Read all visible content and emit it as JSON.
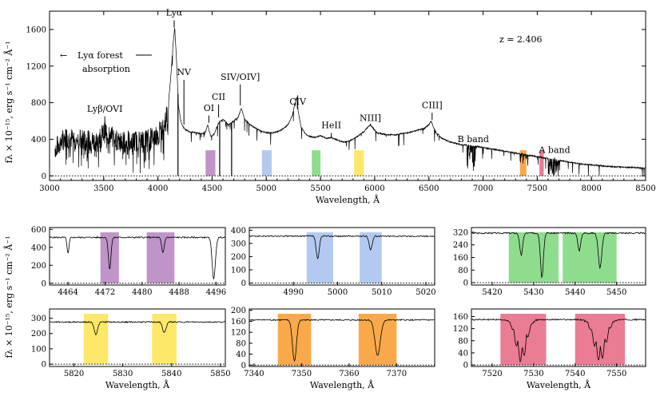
{
  "figure": {
    "ylabel": "fλ × 10⁻¹⁵, erg s⁻¹ cm⁻² Å⁻¹",
    "ylabel_bottom": "fλ × 10⁻¹⁵, erg s⁻¹ cm⁻² Å⁻¹",
    "redshift_label": "z = 2.406"
  },
  "chart_data": [
    {
      "id": "main",
      "type": "line",
      "title": "",
      "xlabel": "Wavelength, Å",
      "ylabel": "fλ × 10⁻¹⁵, erg s⁻¹ cm⁻² Å⁻¹",
      "xlim": [
        3000,
        8500
      ],
      "ylim": [
        -50,
        1800
      ],
      "xticks": [
        3000,
        3500,
        4000,
        4500,
        5000,
        5500,
        6000,
        6500,
        7000,
        7500,
        8000,
        8500
      ],
      "yticks": [
        0,
        400,
        800,
        1200,
        1600
      ],
      "series": [
        {
          "name": "spectrum",
          "x": [
            3050,
            3150,
            3250,
            3350,
            3420,
            3470,
            3520,
            3560,
            3620,
            3700,
            3800,
            3900,
            3980,
            4050,
            4090,
            4120,
            4140,
            4155,
            4170,
            4190,
            4215,
            4235,
            4260,
            4300,
            4350,
            4400,
            4440,
            4460,
            4475,
            4490,
            4520,
            4560,
            4600,
            4650,
            4700,
            4740,
            4770,
            4800,
            4850,
            4900,
            4950,
            5000,
            5050,
            5100,
            5150,
            5200,
            5240,
            5265,
            5280,
            5295,
            5320,
            5360,
            5400,
            5450,
            5500,
            5550,
            5600,
            5640,
            5680,
            5720,
            5760,
            5800,
            5850,
            5900,
            5940,
            5960,
            5980,
            6020,
            6100,
            6200,
            6300,
            6400,
            6460,
            6500,
            6520,
            6540,
            6570,
            6620,
            6700,
            6800,
            6900,
            7000,
            7100,
            7200,
            7300,
            7400,
            7500,
            7600,
            7700,
            7800,
            7900,
            8000,
            8100,
            8200,
            8300,
            8400,
            8500
          ],
          "y": [
            300,
            420,
            400,
            380,
            380,
            430,
            490,
            440,
            390,
            370,
            380,
            400,
            430,
            520,
            700,
            1100,
            1450,
            1620,
            1300,
            760,
            580,
            530,
            500,
            480,
            470,
            460,
            480,
            560,
            480,
            430,
            460,
            580,
            620,
            560,
            600,
            640,
            740,
            620,
            560,
            520,
            490,
            470,
            470,
            480,
            510,
            560,
            660,
            800,
            860,
            700,
            540,
            460,
            430,
            420,
            440,
            410,
            420,
            400,
            380,
            370,
            380,
            400,
            440,
            480,
            540,
            560,
            530,
            470,
            450,
            450,
            470,
            500,
            520,
            560,
            600,
            540,
            470,
            410,
            370,
            340,
            330,
            310,
            290,
            270,
            250,
            230,
            210,
            190,
            170,
            150,
            130,
            120,
            110,
            100,
            95,
            90,
            85
          ]
        }
      ],
      "shaded_bands": [
        {
          "x": [
            4440,
            4530
          ],
          "color": "#bf94c8"
        },
        {
          "x": [
            4960,
            5050
          ],
          "color": "#b4c9f0"
        },
        {
          "x": [
            5420,
            5500
          ],
          "color": "#8fdc8f"
        },
        {
          "x": [
            5810,
            5900
          ],
          "color": "#fde86a"
        },
        {
          "x": [
            7340,
            7400
          ],
          "color": "#f9a94a"
        },
        {
          "x": [
            7520,
            7560
          ],
          "color": "#ea7c94"
        }
      ],
      "annotations": [
        {
          "text": "Lyα",
          "x": 4150,
          "y_text": 1750,
          "y_line": [
            1700,
            1620
          ]
        },
        {
          "text": "Lyβ/OVI",
          "x": 3510,
          "y_text": 700,
          "y_line": [
            650,
            530
          ]
        },
        {
          "text": "NV",
          "x": 4240,
          "y_text": 1100,
          "y_line": [
            1050,
            560
          ]
        },
        {
          "text": "OI",
          "x": 4470,
          "y_text": 710,
          "y_line": [
            660,
            580
          ]
        },
        {
          "text": "CII",
          "x": 4560,
          "y_text": 830,
          "y_line": [
            780,
            640
          ]
        },
        {
          "text": "SIV/OIV]",
          "x": 4760,
          "y_text": 1050,
          "y_line": [
            1000,
            770
          ]
        },
        {
          "text": "CIV",
          "x": 5290,
          "y_text": 780,
          "y_line": [
            730,
            880
          ]
        },
        {
          "text": "HeII",
          "x": 5600,
          "y_text": 520,
          "y_line": [
            470,
            420
          ]
        },
        {
          "text": "NIII]",
          "x": 5960,
          "y_text": 600,
          "y_line": [
            550,
            570
          ]
        },
        {
          "text": "CIII]",
          "x": 6530,
          "y_text": 740,
          "y_line": [
            690,
            610
          ]
        },
        {
          "text": "B band",
          "x": 6910,
          "y_text": 370,
          "y_line": [
            330,
            300
          ]
        },
        {
          "text": "A band",
          "x": 7660,
          "y_text": 250,
          "y_line": [
            200,
            180
          ]
        }
      ],
      "forest_label": {
        "line1": "Lyα forest",
        "line2": "absorption",
        "arrow": "←"
      }
    },
    {
      "id": "p1",
      "type": "line",
      "xlabel": "",
      "xlim": [
        4460,
        4498
      ],
      "ylim": [
        -20,
        620
      ],
      "xticks": [
        4464,
        4472,
        4480,
        4488,
        4496
      ],
      "yticks": [
        0,
        200,
        400,
        600
      ],
      "continuum": 510,
      "bands": [
        {
          "x": [
            4471,
            4475
          ],
          "color": "#bf94c8"
        },
        {
          "x": [
            4481,
            4487
          ],
          "color": "#bf94c8"
        }
      ],
      "dips": [
        {
          "x": 4464,
          "depth": 180,
          "w": 0.3
        },
        {
          "x": 4473,
          "depth": 350,
          "w": 0.4
        },
        {
          "x": 4484.5,
          "depth": 170,
          "w": 0.4
        },
        {
          "x": 4495.5,
          "depth": 460,
          "w": 0.5
        }
      ]
    },
    {
      "id": "p2",
      "type": "line",
      "xlabel": "",
      "xlim": [
        4980,
        5022
      ],
      "ylim": [
        -15,
        420
      ],
      "xticks": [
        4990,
        5000,
        5010,
        5020
      ],
      "yticks": [
        0,
        100,
        200,
        300,
        400
      ],
      "continuum": 355,
      "bands": [
        {
          "x": [
            4993,
            4999
          ],
          "color": "#b4c9f0"
        },
        {
          "x": [
            5005,
            5010
          ],
          "color": "#b4c9f0"
        }
      ],
      "dips": [
        {
          "x": 4995.5,
          "depth": 170,
          "w": 0.5
        },
        {
          "x": 5007.5,
          "depth": 100,
          "w": 0.5
        }
      ]
    },
    {
      "id": "p3",
      "type": "line",
      "xlabel": "",
      "xlim": [
        5415,
        5457
      ],
      "ylim": [
        -15,
        350
      ],
      "xticks": [
        5420,
        5430,
        5440,
        5450
      ],
      "yticks": [
        0,
        80,
        160,
        240,
        320
      ],
      "continuum": 315,
      "bands": [
        {
          "x": [
            5424,
            5436
          ],
          "color": "#8fdc8f"
        },
        {
          "x": [
            5437,
            5450
          ],
          "color": "#8fdc8f"
        }
      ],
      "dips": [
        {
          "x": 5427,
          "depth": 140,
          "w": 0.5
        },
        {
          "x": 5432,
          "depth": 280,
          "w": 0.5
        },
        {
          "x": 5441,
          "depth": 110,
          "w": 0.5
        },
        {
          "x": 5446,
          "depth": 220,
          "w": 0.6
        }
      ]
    },
    {
      "id": "p4",
      "type": "line",
      "xlabel": "Wavelength, Å",
      "xlim": [
        5815,
        5851
      ],
      "ylim": [
        -15,
        360
      ],
      "xticks": [
        5820,
        5830,
        5840,
        5850
      ],
      "yticks": [
        0,
        100,
        200,
        300
      ],
      "continuum": 275,
      "bands": [
        {
          "x": [
            5822,
            5827
          ],
          "color": "#fde86a"
        },
        {
          "x": [
            5836,
            5841
          ],
          "color": "#fde86a"
        }
      ],
      "dips": [
        {
          "x": 5824.5,
          "depth": 80,
          "w": 0.5
        },
        {
          "x": 5838.5,
          "depth": 70,
          "w": 0.5
        }
      ]
    },
    {
      "id": "p5",
      "type": "line",
      "xlabel": "Wavelength, Å",
      "xlim": [
        7339,
        7378
      ],
      "ylim": [
        -5,
        205
      ],
      "xticks": [
        7340,
        7350,
        7360,
        7370
      ],
      "yticks": [
        0,
        40,
        80,
        120,
        160,
        200
      ],
      "continuum": 165,
      "bands": [
        {
          "x": [
            7345,
            7352
          ],
          "color": "#f9a94a"
        },
        {
          "x": [
            7362,
            7370
          ],
          "color": "#f9a94a"
        }
      ],
      "dips": [
        {
          "x": 7348.5,
          "depth": 150,
          "w": 0.6
        },
        {
          "x": 7366,
          "depth": 130,
          "w": 0.8
        }
      ]
    },
    {
      "id": "p6",
      "type": "line",
      "xlabel": "Wavelength, Å",
      "xlim": [
        7515,
        7557
      ],
      "ylim": [
        -5,
        185
      ],
      "xticks": [
        7520,
        7530,
        7540,
        7550
      ],
      "yticks": [
        0,
        40,
        80,
        120,
        160
      ],
      "continuum": 150,
      "bands": [
        {
          "x": [
            7522,
            7533
          ],
          "color": "#ea7c94"
        },
        {
          "x": [
            7540,
            7552
          ],
          "color": "#ea7c94"
        }
      ],
      "dips": [
        {
          "x": 7527,
          "depth": 140,
          "w": 1.8
        },
        {
          "x": 7546,
          "depth": 140,
          "w": 2.0
        }
      ]
    }
  ]
}
